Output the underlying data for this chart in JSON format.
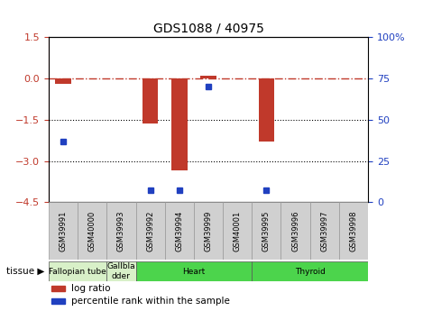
{
  "title": "GDS1088 / 40975",
  "samples": [
    "GSM39991",
    "GSM40000",
    "GSM39993",
    "GSM39992",
    "GSM39994",
    "GSM39999",
    "GSM40001",
    "GSM39995",
    "GSM39996",
    "GSM39997",
    "GSM39998"
  ],
  "log_ratios": [
    -0.18,
    0.0,
    0.0,
    -1.65,
    -3.35,
    0.1,
    0.0,
    -2.3,
    0.0,
    0.0,
    0.0
  ],
  "percentile_ranks": [
    37,
    0,
    0,
    7,
    7,
    70,
    0,
    7,
    0,
    0,
    0
  ],
  "ylim": [
    -4.5,
    1.5
  ],
  "yticks_left": [
    1.5,
    0,
    -1.5,
    -3,
    -4.5
  ],
  "yticks_right": [
    100,
    75,
    50,
    25,
    0
  ],
  "hline_y": 0,
  "dotted_lines": [
    -1.5,
    -3
  ],
  "bar_color": "#c0392b",
  "dot_color": "#2040c0",
  "dash_color": "#c0392b",
  "tissue_groups": [
    {
      "label": "Fallopian tube",
      "start": 0,
      "end": 2,
      "color": "#d8f0c8"
    },
    {
      "label": "Gallbla\ndder",
      "start": 2,
      "end": 3,
      "color": "#d8f0c8"
    },
    {
      "label": "Heart",
      "start": 3,
      "end": 7,
      "color": "#4cd44c"
    },
    {
      "label": "Thyroid",
      "start": 7,
      "end": 11,
      "color": "#4cd44c"
    }
  ],
  "tissue_label": "tissue",
  "legend_items": [
    {
      "color": "#c0392b",
      "label": "log ratio"
    },
    {
      "color": "#2040c0",
      "label": "percentile rank within the sample"
    }
  ],
  "right_axis_color": "#2040c0",
  "left_axis_color": "#c0392b",
  "tick_box_color": "#d0d0d0",
  "tick_box_edge": "#999999"
}
